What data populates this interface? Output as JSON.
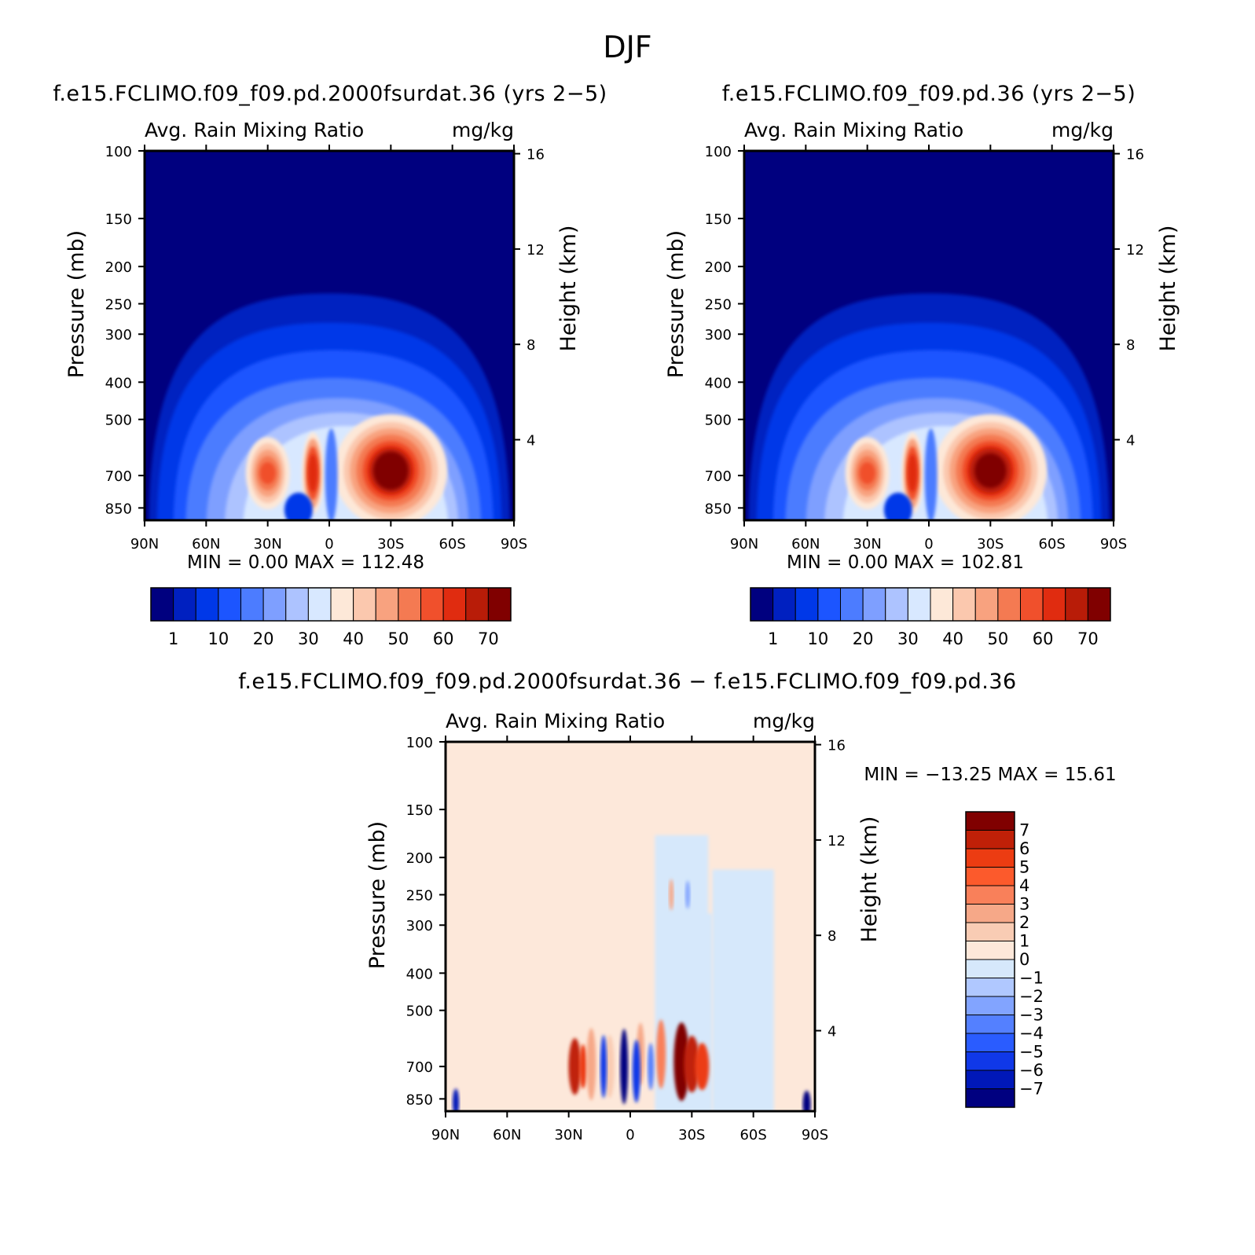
{
  "figure_title": "DJF",
  "chart_data": [
    {
      "type": "heatmap",
      "name": "panel-left",
      "title": "f.e15.FCLIMO.f09_f09.pd.2000fsurdat.36 (yrs 2−5)",
      "variable": "Avg. Rain Mixing Ratio",
      "units": "mg/kg",
      "xlabel": "",
      "ylabel": "Pressure (mb)",
      "y2label": "Height (km)",
      "x_ticks": [
        "90N",
        "60N",
        "30N",
        "0",
        "30S",
        "60S",
        "90S"
      ],
      "y_ticks": [
        "100",
        "150",
        "200",
        "250",
        "300",
        "400",
        "500",
        "700",
        "850"
      ],
      "y_tick_values": [
        100,
        150,
        200,
        250,
        300,
        400,
        500,
        700,
        850
      ],
      "y2_ticks": [
        "16",
        "12",
        "8",
        "4"
      ],
      "y2_tick_values": [
        16,
        12,
        8,
        4
      ],
      "stats_text": "MIN =    0.00   MAX = 112.48",
      "min": 0.0,
      "max": 112.48,
      "peak": {
        "lat": -30,
        "p": 680,
        "value": 112.48
      }
    },
    {
      "type": "heatmap",
      "name": "panel-right",
      "title": "f.e15.FCLIMO.f09_f09.pd.36 (yrs 2−5)",
      "variable": "Avg. Rain Mixing Ratio",
      "units": "mg/kg",
      "xlabel": "",
      "ylabel": "Pressure (mb)",
      "y2label": "Height (km)",
      "x_ticks": [
        "90N",
        "60N",
        "30N",
        "0",
        "30S",
        "60S",
        "90S"
      ],
      "y_ticks": [
        "100",
        "150",
        "200",
        "250",
        "300",
        "400",
        "500",
        "700",
        "850"
      ],
      "y_tick_values": [
        100,
        150,
        200,
        250,
        300,
        400,
        500,
        700,
        850
      ],
      "y2_ticks": [
        "16",
        "12",
        "8",
        "4"
      ],
      "y2_tick_values": [
        16,
        12,
        8,
        4
      ],
      "stats_text": "MIN =    0.00   MAX = 102.81",
      "min": 0.0,
      "max": 102.81,
      "peak": {
        "lat": -30,
        "p": 680,
        "value": 102.81
      }
    },
    {
      "type": "heatmap",
      "name": "panel-diff",
      "title": "f.e15.FCLIMO.f09_f09.pd.2000fsurdat.36 − f.e15.FCLIMO.f09_f09.pd.36",
      "variable": "Avg. Rain Mixing Ratio",
      "units": "mg/kg",
      "xlabel": "",
      "ylabel": "Pressure (mb)",
      "y2label": "Height (km)",
      "x_ticks": [
        "90N",
        "60N",
        "30N",
        "0",
        "30S",
        "60S",
        "90S"
      ],
      "y_ticks": [
        "100",
        "150",
        "200",
        "250",
        "300",
        "400",
        "500",
        "700",
        "850"
      ],
      "y_tick_values": [
        100,
        150,
        200,
        250,
        300,
        400,
        500,
        700,
        850
      ],
      "y2_ticks": [
        "16",
        "12",
        "8",
        "4"
      ],
      "y2_tick_values": [
        16,
        12,
        8,
        4
      ],
      "stats_text": "MIN = −13.25   MAX =   15.61",
      "min": -13.25,
      "max": 15.61
    }
  ],
  "colorbar_abs": {
    "colors": [
      "#00007f",
      "#0020c0",
      "#0038e8",
      "#1c55ff",
      "#4c7cff",
      "#7e9fff",
      "#adc3ff",
      "#d8e8ff",
      "#fde8d8",
      "#fbc8ae",
      "#f8a27f",
      "#f47a52",
      "#f0502c",
      "#e02c10",
      "#b81c08",
      "#800000"
    ],
    "labels": [
      "1",
      "10",
      "20",
      "30",
      "40",
      "50",
      "60",
      "70"
    ]
  },
  "colorbar_diff": {
    "colors": [
      "#800000",
      "#c02008",
      "#ec3c12",
      "#fc5a2c",
      "#f9805a",
      "#f6a888",
      "#f9ccb4",
      "#fde8da",
      "#d6e8fb",
      "#b0c8ff",
      "#82a4ff",
      "#5480ff",
      "#2a5cff",
      "#1038e8",
      "#0018b8",
      "#000080"
    ],
    "labels": [
      "7",
      "6",
      "5",
      "4",
      "3",
      "2",
      "1",
      "0",
      "−1",
      "−2",
      "−3",
      "−4",
      "−5",
      "−6",
      "−7"
    ]
  }
}
